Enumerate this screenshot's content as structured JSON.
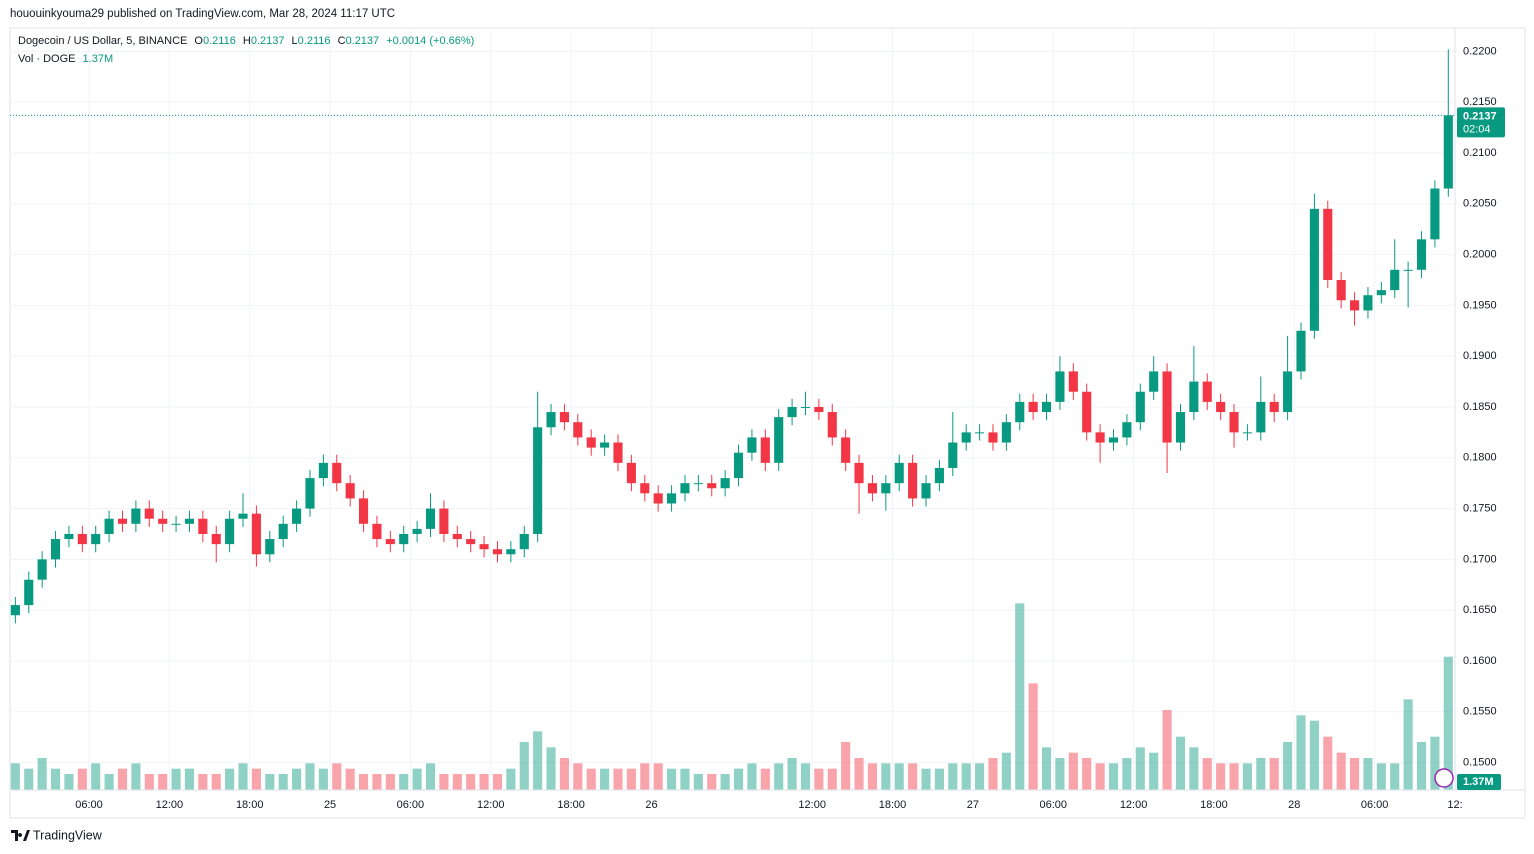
{
  "page": {
    "published": "hououinkyouma29 published on TradingView.com, Mar 28, 2024 11:17 UTC",
    "footer": "TradingView"
  },
  "chart_data": {
    "type": "candlestick",
    "legend": {
      "symbol": "Dogecoin / US Dollar, 5, BINANCE",
      "o_label": "O",
      "o": 0.2116,
      "h_label": "H",
      "h": 0.2137,
      "l_label": "L",
      "l": 0.2116,
      "c_label": "C",
      "c": 0.2137,
      "change": "+0.0014 (+0.66%)",
      "volume_name": "Vol · DOGE",
      "volume_label": "1.37M"
    },
    "last_price": 0.2137,
    "countdown": "02:04",
    "up_color": "#089981",
    "down_color": "#f23645",
    "grid": true,
    "xlim": [
      0.1,
      108.0
    ],
    "xticks": [
      {
        "value": 6,
        "label": "06:00"
      },
      {
        "value": 12,
        "label": "12:00"
      },
      {
        "value": 18,
        "label": "18:00"
      },
      {
        "value": 24,
        "label": "25"
      },
      {
        "value": 30,
        "label": "06:00"
      },
      {
        "value": 36,
        "label": "12:00"
      },
      {
        "value": 42,
        "label": "18:00"
      },
      {
        "value": 48,
        "label": "26"
      },
      {
        "value": 60,
        "label": "12:00"
      },
      {
        "value": 66,
        "label": "18:00"
      },
      {
        "value": 72,
        "label": "27"
      },
      {
        "value": 78,
        "label": "06:00"
      },
      {
        "value": 84,
        "label": "12:00"
      },
      {
        "value": 90,
        "label": "18:00"
      },
      {
        "value": 96,
        "label": "28"
      },
      {
        "value": 102,
        "label": "06:00"
      },
      {
        "value": 108,
        "label": "12:"
      }
    ],
    "ylim": [
      0.1473,
      0.2223
    ],
    "yticks": [
      {
        "value": 0.15,
        "label": "0.1500"
      },
      {
        "value": 0.155,
        "label": "0.1550"
      },
      {
        "value": 0.16,
        "label": "0.1600"
      },
      {
        "value": 0.165,
        "label": "0.1650"
      },
      {
        "value": 0.17,
        "label": "0.1700"
      },
      {
        "value": 0.175,
        "label": "0.1750"
      },
      {
        "value": 0.18,
        "label": "0.1800"
      },
      {
        "value": 0.185,
        "label": "0.1850"
      },
      {
        "value": 0.19,
        "label": "0.1900"
      },
      {
        "value": 0.195,
        "label": "0.1950"
      },
      {
        "value": 0.2,
        "label": "0.2000"
      },
      {
        "value": 0.205,
        "label": "0.2050"
      },
      {
        "value": 0.21,
        "label": "0.2100"
      },
      {
        "value": 0.215,
        "label": "0.2150"
      },
      {
        "value": 0.22,
        "label": "0.2200"
      }
    ],
    "volume_lim": [
      0,
      45
    ],
    "x": [
      0.5,
      1.5,
      2.5,
      3.5,
      4.5,
      5.5,
      6.5,
      7.5,
      8.5,
      9.5,
      10.5,
      11.5,
      12.5,
      13.5,
      14.5,
      15.5,
      16.5,
      17.5,
      18.5,
      19.5,
      20.5,
      21.5,
      22.5,
      23.5,
      24.5,
      25.5,
      26.5,
      27.5,
      28.5,
      29.5,
      30.5,
      31.5,
      32.5,
      33.5,
      34.5,
      35.5,
      36.5,
      37.5,
      38.5,
      39.5,
      40.5,
      41.5,
      42.5,
      43.5,
      44.5,
      45.5,
      46.5,
      47.5,
      48.5,
      49.5,
      50.5,
      51.5,
      52.5,
      53.5,
      54.5,
      55.5,
      56.5,
      57.5,
      58.5,
      59.5,
      60.5,
      61.5,
      62.5,
      63.5,
      64.5,
      65.5,
      66.5,
      67.5,
      68.5,
      69.5,
      70.5,
      71.5,
      72.5,
      73.5,
      74.5,
      75.5,
      76.5,
      77.5,
      78.5,
      79.5,
      80.5,
      81.5,
      82.5,
      83.5,
      84.5,
      85.5,
      86.5,
      87.5,
      88.5,
      89.5,
      90.5,
      91.5,
      92.5,
      93.5,
      94.5,
      95.5,
      96.5,
      97.5,
      98.5,
      99.5,
      100.5,
      101.5,
      102.5,
      103.5,
      104.5,
      105.5,
      106.5,
      107.5
    ],
    "open": [
      0.1645,
      0.1655,
      0.168,
      0.17,
      0.172,
      0.1725,
      0.1715,
      0.1725,
      0.174,
      0.1735,
      0.175,
      0.174,
      0.1735,
      0.1735,
      0.174,
      0.1725,
      0.1715,
      0.174,
      0.1745,
      0.1705,
      0.172,
      0.1735,
      0.175,
      0.178,
      0.1795,
      0.1775,
      0.176,
      0.1735,
      0.172,
      0.1715,
      0.1725,
      0.173,
      0.175,
      0.1725,
      0.172,
      0.1715,
      0.171,
      0.1705,
      0.171,
      0.1725,
      0.183,
      0.1845,
      0.1835,
      0.182,
      0.181,
      0.1815,
      0.1795,
      0.1775,
      0.1765,
      0.1755,
      0.1765,
      0.1775,
      0.1775,
      0.177,
      0.178,
      0.1805,
      0.182,
      0.1795,
      0.184,
      0.185,
      0.185,
      0.1845,
      0.182,
      0.1795,
      0.1775,
      0.1765,
      0.1775,
      0.1795,
      0.176,
      0.1775,
      0.179,
      0.1815,
      0.1825,
      0.1825,
      0.1815,
      0.1835,
      0.1855,
      0.1845,
      0.1855,
      0.1885,
      0.1865,
      0.1825,
      0.1815,
      0.182,
      0.1835,
      0.1865,
      0.1885,
      0.1815,
      0.1845,
      0.1875,
      0.1855,
      0.1845,
      0.1825,
      0.1825,
      0.1855,
      0.1845,
      0.1885,
      0.1925,
      0.2045,
      0.1975,
      0.1955,
      0.1945,
      0.196,
      0.1965,
      0.1985,
      0.1985,
      0.2015,
      0.2065
    ],
    "high": [
      0.1663,
      0.1688,
      0.1708,
      0.1728,
      0.1733,
      0.1733,
      0.1733,
      0.1748,
      0.1748,
      0.1758,
      0.1758,
      0.1748,
      0.1743,
      0.1748,
      0.1748,
      0.1733,
      0.1748,
      0.1765,
      0.1753,
      0.1728,
      0.1743,
      0.1758,
      0.1788,
      0.1803,
      0.1803,
      0.1783,
      0.1768,
      0.1743,
      0.1728,
      0.1733,
      0.1738,
      0.1765,
      0.1758,
      0.1733,
      0.1728,
      0.1723,
      0.1718,
      0.1718,
      0.1733,
      0.1865,
      0.1853,
      0.1853,
      0.1843,
      0.1828,
      0.1823,
      0.1823,
      0.1803,
      0.1783,
      0.1773,
      0.1773,
      0.1783,
      0.1783,
      0.1783,
      0.1788,
      0.1813,
      0.1828,
      0.1828,
      0.1848,
      0.1858,
      0.1865,
      0.1858,
      0.1853,
      0.1828,
      0.1803,
      0.1783,
      0.1783,
      0.1803,
      0.1803,
      0.1783,
      0.1798,
      0.1845,
      0.1833,
      0.1833,
      0.1833,
      0.1843,
      0.1863,
      0.1863,
      0.1863,
      0.19,
      0.1893,
      0.1873,
      0.1833,
      0.1828,
      0.1843,
      0.1873,
      0.19,
      0.1893,
      0.1853,
      0.191,
      0.1883,
      0.1863,
      0.1853,
      0.1833,
      0.188,
      0.1863,
      0.192,
      0.1933,
      0.206,
      0.2053,
      0.1983,
      0.1963,
      0.1968,
      0.1973,
      0.2015,
      0.1993,
      0.2023,
      0.2073,
      0.2202
    ],
    "low": [
      0.1637,
      0.1647,
      0.1672,
      0.1692,
      0.1712,
      0.1707,
      0.1707,
      0.1717,
      0.1727,
      0.1727,
      0.1732,
      0.1727,
      0.1727,
      0.1727,
      0.1717,
      0.1697,
      0.1707,
      0.1732,
      0.1693,
      0.1697,
      0.1712,
      0.1727,
      0.1742,
      0.1772,
      0.1767,
      0.1752,
      0.1727,
      0.1712,
      0.1707,
      0.1707,
      0.1717,
      0.1722,
      0.1717,
      0.1712,
      0.1707,
      0.1702,
      0.1697,
      0.1697,
      0.1702,
      0.1717,
      0.1822,
      0.1827,
      0.1812,
      0.1802,
      0.1802,
      0.1787,
      0.1767,
      0.1757,
      0.1747,
      0.1747,
      0.1757,
      0.1767,
      0.1762,
      0.1762,
      0.1772,
      0.1797,
      0.1787,
      0.1787,
      0.1832,
      0.1842,
      0.1837,
      0.1812,
      0.1787,
      0.1745,
      0.1757,
      0.1748,
      0.1767,
      0.1752,
      0.1752,
      0.1767,
      0.1782,
      0.1807,
      0.1817,
      0.1807,
      0.1807,
      0.1827,
      0.1837,
      0.1837,
      0.1847,
      0.1857,
      0.1817,
      0.1795,
      0.1807,
      0.1812,
      0.1827,
      0.1857,
      0.1785,
      0.1807,
      0.1837,
      0.1847,
      0.1837,
      0.181,
      0.1817,
      0.1817,
      0.1835,
      0.1837,
      0.1877,
      0.1917,
      0.1967,
      0.1947,
      0.193,
      0.1937,
      0.1952,
      0.1957,
      0.1948,
      0.1977,
      0.2007,
      0.2057
    ],
    "close": [
      0.1655,
      0.168,
      0.17,
      0.172,
      0.1725,
      0.1715,
      0.1725,
      0.174,
      0.1735,
      0.175,
      0.174,
      0.1735,
      0.1735,
      0.174,
      0.1725,
      0.1715,
      0.174,
      0.1745,
      0.1705,
      0.172,
      0.1735,
      0.175,
      0.178,
      0.1795,
      0.1775,
      0.176,
      0.1735,
      0.172,
      0.1715,
      0.1725,
      0.173,
      0.175,
      0.1725,
      0.172,
      0.1715,
      0.171,
      0.1705,
      0.171,
      0.1725,
      0.183,
      0.1845,
      0.1835,
      0.182,
      0.181,
      0.1815,
      0.1795,
      0.1775,
      0.1765,
      0.1755,
      0.1765,
      0.1775,
      0.1775,
      0.177,
      0.178,
      0.1805,
      0.182,
      0.1795,
      0.184,
      0.185,
      0.185,
      0.1845,
      0.182,
      0.1795,
      0.1775,
      0.1765,
      0.1775,
      0.1795,
      0.176,
      0.1775,
      0.179,
      0.1815,
      0.1825,
      0.1825,
      0.1815,
      0.1835,
      0.1855,
      0.1845,
      0.1855,
      0.1885,
      0.1865,
      0.1825,
      0.1815,
      0.182,
      0.1835,
      0.1865,
      0.1885,
      0.1815,
      0.1845,
      0.1875,
      0.1855,
      0.1845,
      0.1825,
      0.1825,
      0.1855,
      0.1845,
      0.1885,
      0.1925,
      0.2045,
      0.1975,
      0.1955,
      0.1945,
      0.196,
      0.1965,
      0.1985,
      0.1985,
      0.2015,
      0.2065,
      0.2137
    ],
    "volume": [
      5,
      4,
      6,
      4,
      3,
      4,
      5,
      3,
      4,
      5,
      3,
      3,
      4,
      4,
      3,
      3,
      4,
      5,
      4,
      3,
      3,
      4,
      5,
      4,
      5,
      4,
      3,
      3,
      3,
      3,
      4,
      5,
      3,
      3,
      3,
      3,
      3,
      4,
      9,
      11,
      8,
      6,
      5,
      4,
      4,
      4,
      4,
      5,
      5,
      4,
      4,
      3,
      3,
      3,
      4,
      5,
      4,
      5,
      6,
      5,
      4,
      4,
      9,
      6,
      5,
      5,
      5,
      5,
      4,
      4,
      5,
      5,
      5,
      6,
      7,
      35,
      20,
      8,
      6,
      7,
      6,
      5,
      5,
      6,
      8,
      7,
      15,
      10,
      8,
      6,
      5,
      5,
      5,
      6,
      6,
      9,
      14,
      13,
      10,
      7,
      6,
      6,
      5,
      5,
      17,
      9,
      10,
      25
    ]
  }
}
